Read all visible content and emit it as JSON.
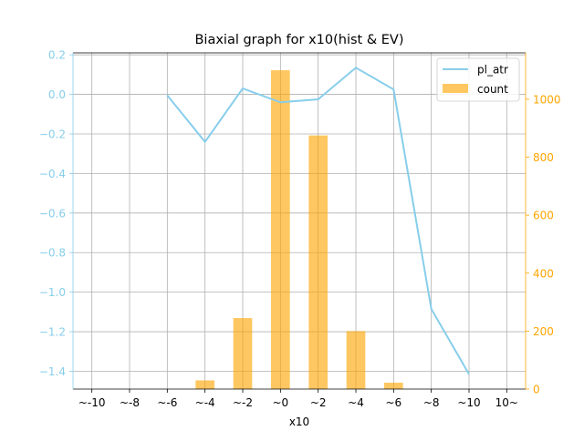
{
  "chart_data": {
    "type": "bar",
    "title": "Biaxial graph for x10(hist & EV)",
    "xlabel": "x10",
    "ylabel": "",
    "y2label": "",
    "categories": [
      "~-10",
      "~-8",
      "~-6",
      "~-4",
      "~-2",
      "~0",
      "~2",
      "~4",
      "~6",
      "~8",
      "~10",
      "10~"
    ],
    "series": [
      {
        "name": "count",
        "kind": "bar",
        "axis": "right",
        "values": [
          0,
          0,
          0,
          30,
          245,
          1100,
          875,
          200,
          22,
          0,
          0,
          0
        ]
      },
      {
        "name": "pl_atr",
        "kind": "line",
        "axis": "left",
        "values": [
          null,
          null,
          -0.005,
          -0.24,
          0.03,
          -0.04,
          -0.025,
          0.135,
          0.025,
          -1.085,
          -1.415,
          null
        ]
      }
    ],
    "ylim": [
      -1.49,
      0.21
    ],
    "y2lim": [
      0,
      1160
    ],
    "yticks": [
      0.2,
      0.0,
      -0.2,
      -0.4,
      -0.6,
      -0.8,
      -1.0,
      -1.2,
      -1.4
    ],
    "ytick_labels": [
      "0.2",
      "0.0",
      "−0.2",
      "−0.4",
      "−0.6",
      "−0.8",
      "−1.0",
      "−1.2",
      "−1.4"
    ],
    "y2ticks": [
      0,
      200,
      400,
      600,
      800,
      1000
    ],
    "y2tick_labels": [
      "0",
      "200",
      "400",
      "600",
      "800",
      "1000"
    ],
    "grid": true,
    "legend_position": "top-right",
    "colors": {
      "line": "#87CEEB",
      "bar": "#FFA500",
      "left_axis": "#87CEEB",
      "right_axis": "#FFA500",
      "grid": "#b0b0b0"
    }
  }
}
